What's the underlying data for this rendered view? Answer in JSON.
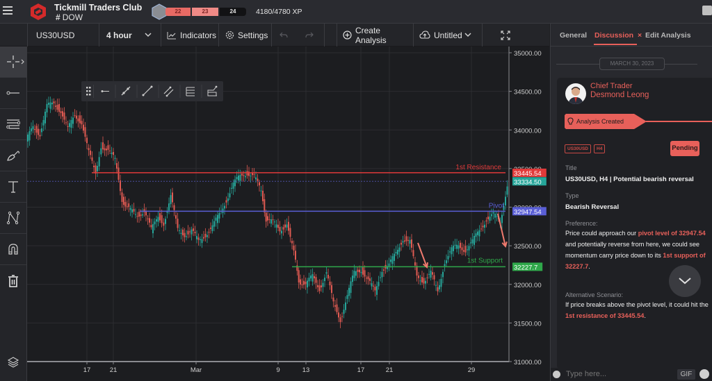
{
  "header": {
    "brand_title": "Tickmill Traders Club",
    "channel_hash": "#",
    "channel_name": "DOW",
    "xp_levels": [
      {
        "label": "22",
        "color": "#e86a64"
      },
      {
        "label": "23",
        "color": "#f08a86"
      },
      {
        "label": "24",
        "color": "#121214"
      }
    ],
    "xp_text": "4180/4780 XP"
  },
  "toolbar": {
    "symbol": "US30USD",
    "interval": "4 hour",
    "indicators_label": "Indicators",
    "settings_label": "Settings",
    "create_analysis_label": "Create Analysis",
    "layout_name": "Untitled"
  },
  "left_tools": [
    "crosshair-icon",
    "horizontal-line-icon",
    "fib-lines-icon",
    "brush-icon",
    "text-icon",
    "pattern-icon",
    "magnet-icon",
    "trash-icon",
    "layers-icon"
  ],
  "floating_toolbar": [
    "drag-handle-icon",
    "horizontal-ray-icon",
    "trend-line-extended-icon",
    "trend-line-icon",
    "parallel-channel-icon",
    "fib-retracement-icon",
    "path-icon"
  ],
  "chart": {
    "y_axis_ticks": [
      "35000.00",
      "34500.00",
      "34000.00",
      "33500.00",
      "33000.00",
      "32500.00",
      "32000.00",
      "31500.00",
      "31000.00"
    ],
    "x_axis_ticks": [
      "17",
      "21",
      "Mar",
      "9",
      "13",
      "17",
      "21",
      "29"
    ],
    "levels": {
      "resistance": {
        "label": "1st Resistance",
        "value": "33445.54",
        "color": "#e03a3a"
      },
      "pivot": {
        "label": "Pivot",
        "value": "32947.54",
        "color": "#5a5fd6"
      },
      "support": {
        "label": "1st Support",
        "value": "32227.7",
        "color": "#2fa84a"
      },
      "last_price": {
        "value": "33334.50",
        "color": "#26a69a"
      }
    },
    "up_color": "#26a69a",
    "down_color": "#e05a52"
  },
  "panel": {
    "tabs": [
      {
        "label": "General"
      },
      {
        "label": "Discussion",
        "active": true,
        "close": "×"
      },
      {
        "label": "Edit Analysis"
      }
    ],
    "date": "MARCH 30, 2023",
    "author_role": "Chief Trader",
    "author_name": "Desmond Leong",
    "event_label": "Analysis Created",
    "chips": [
      "US30USD",
      "H4"
    ],
    "status": "Pending",
    "title_label": "Title",
    "title_value": "US30USD, H4 | Potential bearish reversal",
    "type_label": "Type",
    "type_value": "Bearish Reversal",
    "preference_label": "Preference:",
    "preference": {
      "t1": "Price could approach our ",
      "h1": "pivot level of 32947.54",
      "t2": " and potentially reverse from here, we could see momentum carry price down to its ",
      "h2": "1st support of 32227.7",
      "t3": "."
    },
    "alt_label": "Alternative Scenario:",
    "alternative": {
      "t1": "If price breaks above the pivot level, it could hit the ",
      "h1": "1st resistance of 33445.54",
      "t2": "."
    },
    "composer_placeholder": "Type here...",
    "gif_label": "GIF"
  }
}
